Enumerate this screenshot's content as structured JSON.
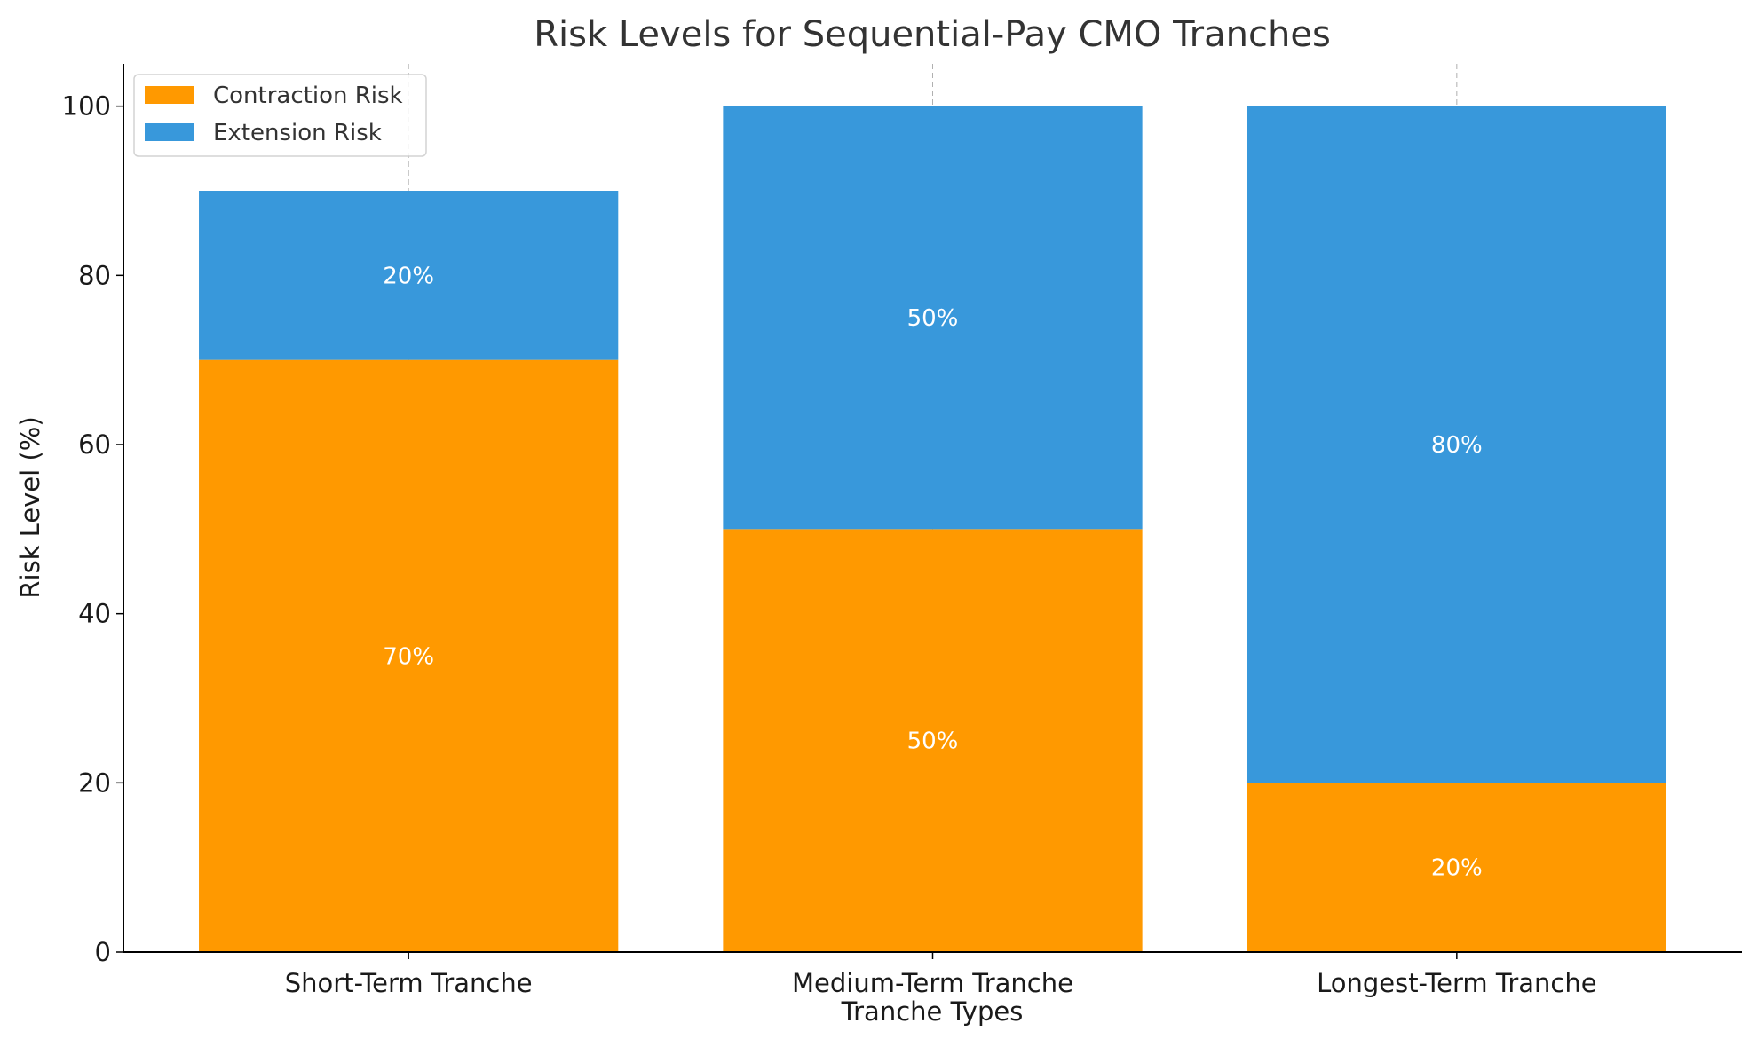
{
  "chart_data": {
    "type": "bar",
    "stacked": true,
    "title": "Risk Levels for Sequential-Pay CMO Tranches",
    "xlabel": "Tranche Types",
    "ylabel": "Risk Level (%)",
    "ylim": [
      0,
      105
    ],
    "yticks": [
      0,
      20,
      40,
      60,
      80,
      100
    ],
    "categories": [
      "Short-Term Tranche",
      "Medium-Term Tranche",
      "Longest-Term Tranche"
    ],
    "series": [
      {
        "name": "Contraction Risk",
        "values": [
          70,
          50,
          20
        ],
        "color": "#ff9900",
        "labels": [
          "70%",
          "50%",
          "20%"
        ]
      },
      {
        "name": "Extension Risk",
        "values": [
          20,
          50,
          80
        ],
        "color": "#3898db",
        "labels": [
          "20%",
          "50%",
          "80%"
        ]
      }
    ],
    "grid": {
      "x": true,
      "y": false,
      "style": "dashed"
    },
    "legend": {
      "placement": "top-left"
    }
  }
}
